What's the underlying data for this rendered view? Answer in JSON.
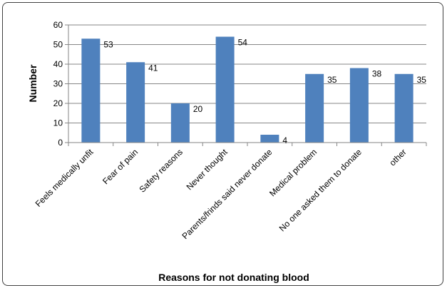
{
  "chart_data": {
    "type": "bar",
    "title": "",
    "xlabel": "Reasons for not donating blood",
    "ylabel": "Number",
    "categories": [
      "Feels medically unfit",
      "Fear of pain",
      "Safety reasons",
      "Never thought",
      "Parents/frinds said never donate",
      "Medical problem",
      "No one asked them to donate",
      "other"
    ],
    "values": [
      53,
      41,
      20,
      54,
      4,
      35,
      38,
      35
    ],
    "ylim": [
      0,
      60
    ],
    "yticks": [
      0,
      10,
      20,
      30,
      40,
      50,
      60
    ],
    "grid": true,
    "legend": "none",
    "bar_color": "#4f81bd"
  }
}
